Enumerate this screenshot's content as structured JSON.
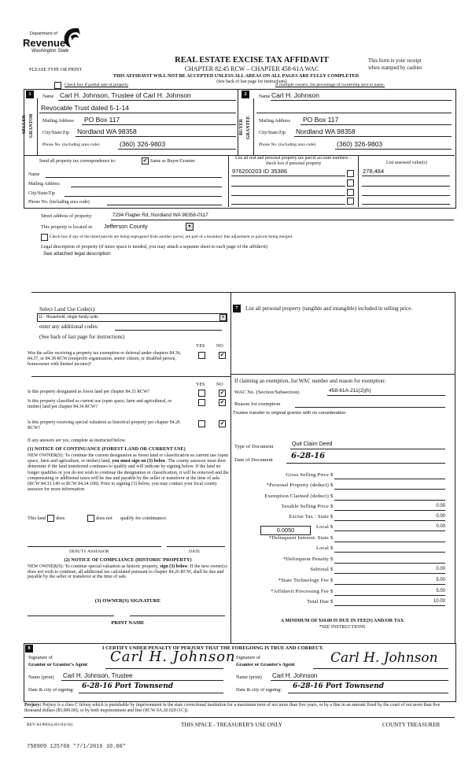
{
  "header": {
    "logo": {
      "line1": "Department of",
      "line2": "Revenue",
      "line3": "Washington State"
    },
    "title": "REAL ESTATE EXCISE TAX AFFIDAVIT",
    "subtitle": "CHAPTER 82.45 RCW – CHAPTER 458-61A WAC",
    "please_print": "PLEASE TYPE OR PRINT",
    "receipt_1": "This form is your receipt",
    "receipt_2": "when stamped by cashier.",
    "warning": "THIS AFFIDAVIT WILL NOT BE ACCEPTED UNLESS ALL AREAS ON ALL PAGES ARE FULLY COMPLETED",
    "see_back": "(See back of last page for instructions)",
    "partial_sale": {
      "label": "Check box if partial sale of property",
      "checked": false
    },
    "multiple_owners": "If multiple owners, list percentage of ownership next to name."
  },
  "seller": {
    "number": "1",
    "side_label_1": "SELLER",
    "side_label_2": "GRANTOR",
    "name_label": "Name",
    "name": "Carl H. Johnson, Trustee of Carl H. Johnson",
    "name_2": "Revocable Trust dated 5-1-14",
    "mailing_label": "Mailing Address",
    "mailing": "PO Box 117",
    "city_label": "City/State/Zip",
    "city": "Nordland WA 98358",
    "phone_label": "Phone No. (including area code)",
    "phone": "(360) 326-9803"
  },
  "buyer": {
    "number": "2",
    "side_label_1": "BUYER",
    "side_label_2": "GRANTEE",
    "name_label": "Name",
    "name": "Carl H. Johnson",
    "mailing_label": "Mailing Address",
    "mailing": "PO Box 117",
    "city_label": "City/State/Zip",
    "city": "Nordland WA 98358",
    "phone_label": "Phone No. (including area code)",
    "phone": "(360) 326-9803"
  },
  "correspondence": {
    "label": "Send all property tax correspondence to:",
    "same_label": "Same as Buyer/Grantee",
    "same_checked": true,
    "name_label": "Name",
    "mailing_label": "Mailing Address",
    "city_label": "City/State/Zip",
    "phone_label": "Phone No. (including area code)"
  },
  "parcels": {
    "header": "List all real and personal property tax parcel account numbers – check box if personal property",
    "value_header": "List assessed value(s)",
    "rows": [
      {
        "parcel": "976200203  ID 35386",
        "personal": false,
        "value": "278,484"
      },
      {
        "parcel": "",
        "personal": false,
        "value": ""
      },
      {
        "parcel": "",
        "personal": false,
        "value": ""
      },
      {
        "parcel": "",
        "personal": false,
        "value": ""
      }
    ]
  },
  "property": {
    "street_label": "Street address of property:",
    "street": "7294 Flagler Rd, Nordland WA 98358-0117",
    "located_label": "This property is located in",
    "county": "Jefferson County",
    "segregated_label": "Check box if any of the listed parcels are being segregated from another parcel, are part of a boundary line adjustment or parcels being merged.",
    "segregated_checked": false,
    "legal_label": "Legal description of property (if more space is needed, you may attach a separate sheet to each page of the affidavit)",
    "legal": "See attached legal description"
  },
  "land_use": {
    "label": "Select Land Use Code(s):",
    "selected": "11 - Household, single family units",
    "additional_label": "enter any additional codes:",
    "see_back": "(See back of last page for instructions)",
    "yes": "YES",
    "no": "NO",
    "q1": {
      "text": "Was the seller receiving a property tax exemption or deferral under chapters 84.36, 84.37, or 84.38 RCW (nonprofit organization, senior citizen, or disabled person, homeowner with limited income)?",
      "answer": "NO"
    },
    "q2": {
      "text": "Is this property designated as forest land per chapter 84.33 RCW?",
      "answer": "NO"
    },
    "q3": {
      "text": "Is this property classified as current use (open space, farm and agricultural, or timber) land per chapter 84.34 RCW?",
      "answer": "NO"
    },
    "q4": {
      "text": "Is this property receiving special valuation as historical property per chapter 84.26 RCW?",
      "answer": "NO"
    },
    "if_yes": "If any answers are yes, complete as instructed below.",
    "notice1_title": "(1) NOTICE OF CONTINUANCE  (FOREST LAND OR CURRENT USE)",
    "notice1_a": "NEW OWNER(S): To continue the current designation as forest land or classification as current use (open space, farm and agriculture, or timber) land, ",
    "notice1_bold": "you must sign on (3) below",
    "notice1_b": ". The county assessor must then determine if the land transferred continues to qualify and will indicate by signing below. If the land no longer qualifies or you do not wish to continue the designation or classification, it will be removed and the compensating or additional taxes will be due and payable by the seller or transferor at the time of sale. (RCW 84.33.140 or RCW 84.34.108). Prior to signing (3) below, you may contact your local county assessor for more information.",
    "this_land": "This land",
    "does": "does",
    "does_not": "does not",
    "qualify": "qualify for continuance.",
    "deputy": "DEPUTY ASSESSOR",
    "date": "DATE",
    "notice2_title": "(2) NOTICE OF COMPLIANCE (HISTORIC PROPERTY)",
    "notice2_a": "NEW OWNER(S): To continue special valuation as historic property, ",
    "notice2_bold": "sign (3) below",
    "notice2_b": ". If the new owner(s) does not wish to continue, all additional tax calculated pursuant to chapter 84.26 RCW, shall be due and payable by the seller or transferor at the time of sale.",
    "owner_sig": "(3)  OWNER(S) SIGNATURE",
    "print_name": "PRINT NAME"
  },
  "personal_property": {
    "number": "7",
    "label": "List all  personal property (tangible and intangible) included in selling price."
  },
  "exemption": {
    "label": "If claiming an exemption, list WAC number and reason for exemption:",
    "wac_label": "WAC No. (Section/Subsection)",
    "wac": "458-61A-211(2)(h)",
    "reason_label": "Reason for exemption",
    "reason": "Trustee transfer to original grantor with no consideration",
    "doc_type_label": "Type of Document",
    "doc_type": "Quit Claim Deed",
    "doc_date_label": "Date of Document",
    "doc_date": "6-28-16"
  },
  "tax": {
    "rows": [
      {
        "label": "Gross Selling Price",
        "value": ""
      },
      {
        "label": "*Personal Property (deduct)",
        "value": ""
      },
      {
        "label": "Exemption Claimed (deduct)",
        "value": ""
      },
      {
        "label": "Taxable Selling Price",
        "value": "0.00"
      },
      {
        "label": "Excise Tax : State",
        "value": "0.00"
      },
      {
        "label": "Local",
        "value": "0.00"
      },
      {
        "label": "*Delinquent Interest: State",
        "value": ""
      },
      {
        "label": "Local",
        "value": ""
      },
      {
        "label": "*Delinquent Penalty",
        "value": ""
      },
      {
        "label": "Subtotal",
        "value": "0.00"
      },
      {
        "label": "*State Technology Fee",
        "value": "5.00"
      },
      {
        "label": "*Affidavit Processing Fee",
        "value": "5.00"
      },
      {
        "label": "Total Due",
        "value": "10.00"
      }
    ],
    "currency": "$",
    "local_rate": "0.0050",
    "minimum": "A MINIMUM OF $10.00 IS DUE IN FEE(S) AND/OR TAX",
    "see_instructions": "*SEE INSTRUCTIONS"
  },
  "certify": {
    "number": "8",
    "statement": "I CERTIFY UNDER PENALTY OF PERJURY THAT THE FOREGOING IS TRUE AND CORRECT.",
    "grantor_sig_label_1": "Signature of",
    "grantor_sig_label_2": "Grantor or Grantor's Agent",
    "grantor_signature": "Carl H. Johnson",
    "grantor_name_label": "Name (print)",
    "grantor_name": "Carl H. Johnson, Trustee",
    "grantor_date_label": "Date & city of signing:",
    "grantor_date": "6-28-16  Port Townsend",
    "grantee_sig_label_1": "Signature of",
    "grantee_sig_label_2": "Grantee or Grantee's Agent",
    "grantee_signature": "Carl H. Johnson",
    "grantee_name_label": "Name (print)",
    "grantee_name": "Carl H. Johnson",
    "grantee_date_label": "Date & city of signing:",
    "grantee_date": "6-28-16  Port Townsend"
  },
  "footer": {
    "perjury_bold": "Perjury:",
    "perjury": " Perjury is a class C felony which is punishable by imprisonment in the state correctional institution for a maximum term of not more than five years, or by a fine in an amount fixed by the court of not more than five thousand dollars ($5,000.00), or by both imprisonment and fine (RCW 9A.20.020 (1C)).",
    "form_no": "REV 84 0001a (01/04/16)",
    "treasurer_use": "THIS SPACE - TREASURER'S USE ONLY",
    "county_treasurer": "COUNTY TREASURER",
    "stamp": "756909 125760 *7/1/2016 10.00*"
  }
}
